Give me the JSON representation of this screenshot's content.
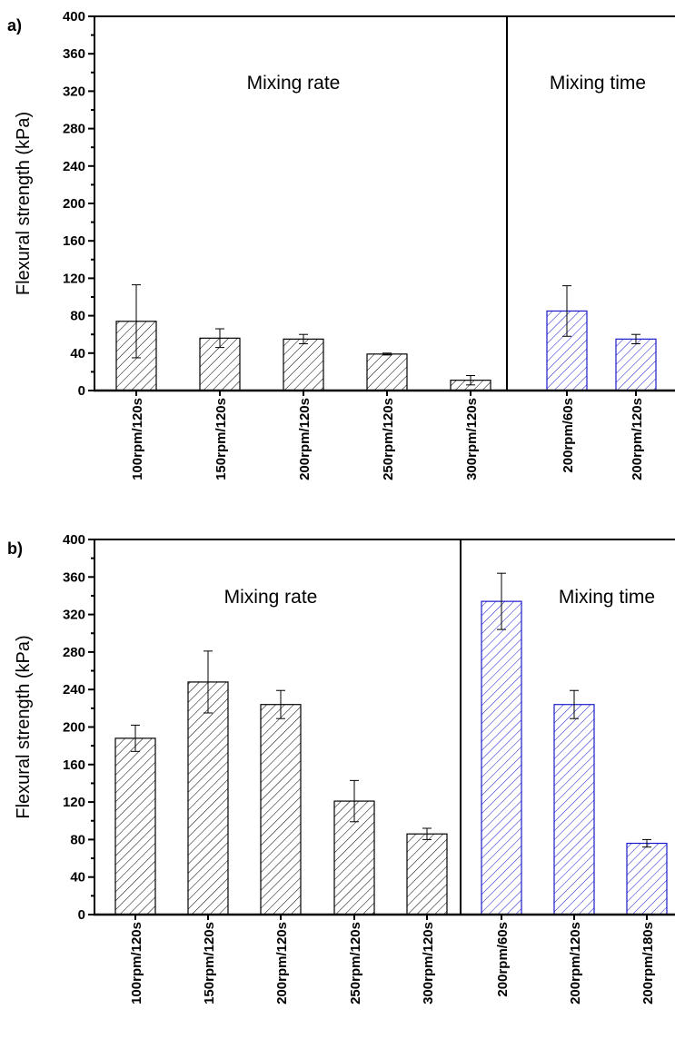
{
  "colors": {
    "rate": "#000000",
    "time": "#1a1acc",
    "axis": "#000000"
  },
  "chart_data": [
    {
      "type": "bar",
      "panel": "a)",
      "ylabel": "Flexural strength (kPa)",
      "ylim": [
        0,
        400
      ],
      "yticks": [
        0,
        40,
        80,
        120,
        160,
        200,
        240,
        280,
        320,
        360,
        400
      ],
      "grid": false,
      "pattern": "diagonal hatch",
      "groups": [
        {
          "label": "Mixing rate",
          "color": "#000000",
          "categories": [
            "100rpm/120s",
            "150rpm/120s",
            "200rpm/120s",
            "250rpm/120s",
            "300rpm/120s"
          ],
          "values": [
            74,
            56,
            55,
            39,
            11
          ],
          "errors": [
            39,
            10,
            5,
            1,
            5
          ]
        },
        {
          "label": "Mixing time",
          "color": "#1a1acc",
          "categories": [
            "200rpm/60s",
            "200rpm/120s"
          ],
          "values": [
            85,
            55
          ],
          "errors": [
            27,
            5
          ]
        }
      ]
    },
    {
      "type": "bar",
      "panel": "b)",
      "ylabel": "Flexural strength (kPa)",
      "ylim": [
        0,
        400
      ],
      "yticks": [
        0,
        40,
        80,
        120,
        160,
        200,
        240,
        280,
        320,
        360,
        400
      ],
      "grid": false,
      "pattern": "diagonal hatch",
      "groups": [
        {
          "label": "Mixing rate",
          "color": "#000000",
          "categories": [
            "100rpm/120s",
            "150rpm/120s",
            "200rpm/120s",
            "250rpm/120s",
            "300rpm/120s"
          ],
          "values": [
            188,
            248,
            224,
            121,
            86
          ],
          "errors": [
            14,
            33,
            15,
            22,
            6
          ]
        },
        {
          "label": "Mixing time",
          "color": "#1a1acc",
          "categories": [
            "200rpm/60s",
            "200rpm/120s",
            "200rpm/180s"
          ],
          "values": [
            334,
            224,
            76
          ],
          "errors": [
            30,
            15,
            4
          ]
        }
      ]
    }
  ]
}
